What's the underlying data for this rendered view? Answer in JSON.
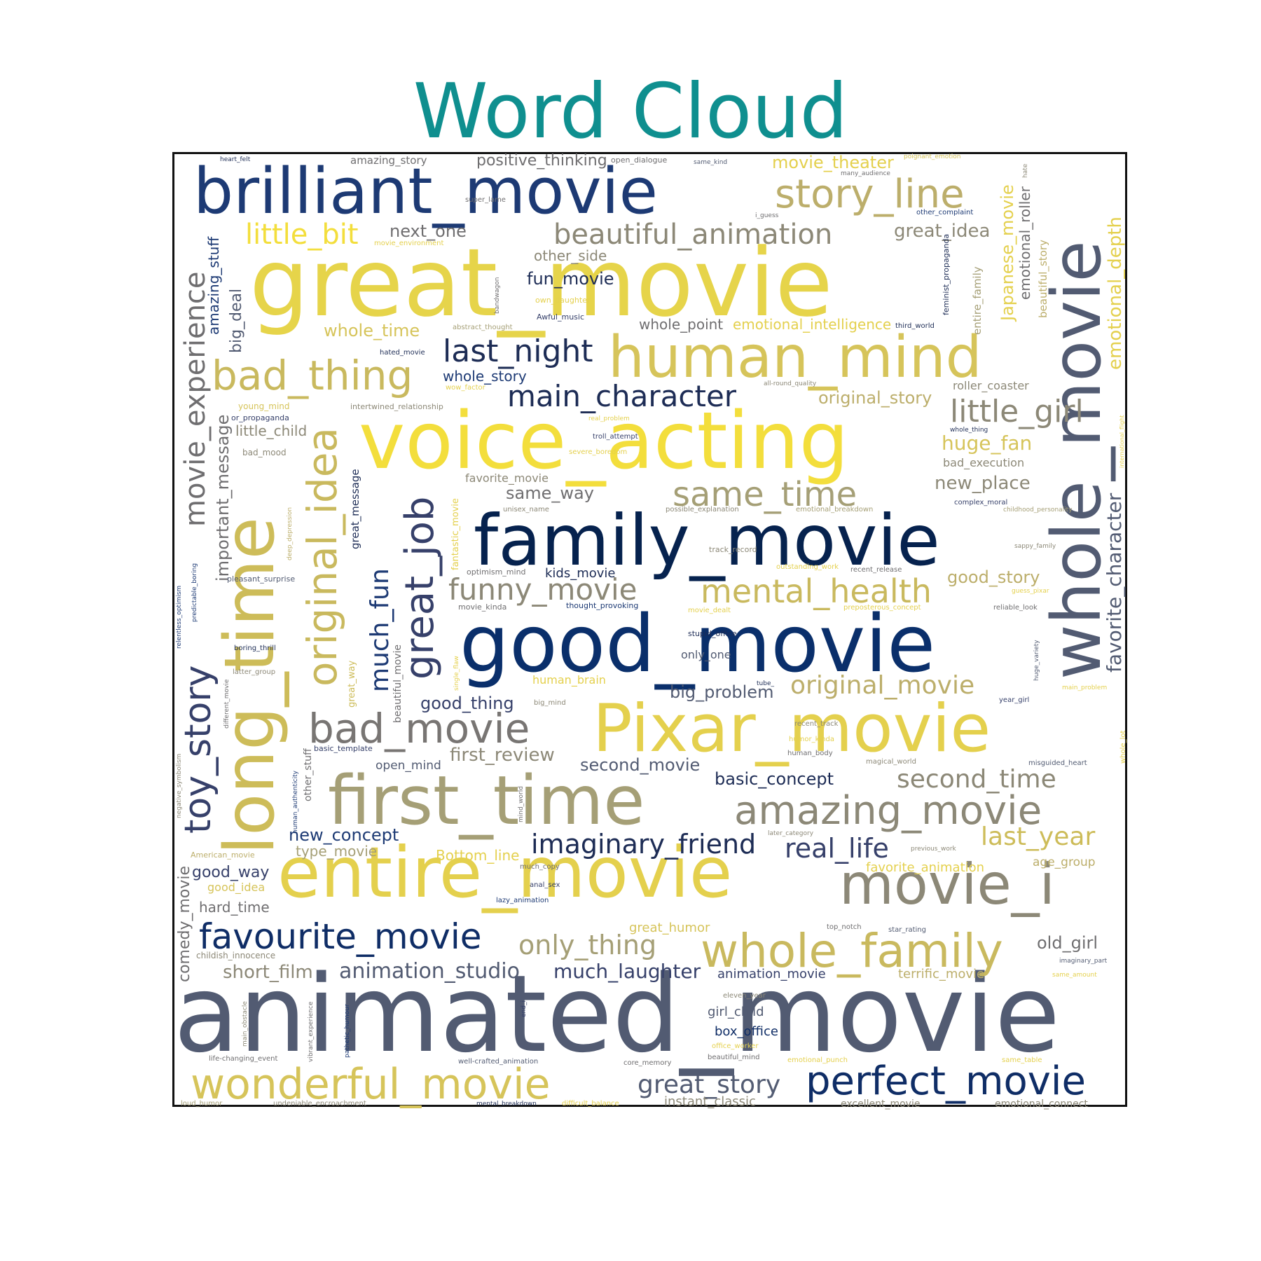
{
  "title": "Word Cloud",
  "chart_data": {
    "type": "wordcloud",
    "title": "Word Cloud",
    "colormap": "cividis",
    "words": [
      {
        "text": "animated_movie",
        "weight": 100,
        "color": "#525b72"
      },
      {
        "text": "great_movie",
        "weight": 96,
        "color": "#e6d44a"
      },
      {
        "text": "voice_acting",
        "weight": 92,
        "color": "#f3de3c"
      },
      {
        "text": "good_movie",
        "weight": 90,
        "color": "#0a2f6b"
      },
      {
        "text": "family_movie",
        "weight": 84,
        "color": "#06224e"
      },
      {
        "text": "long_time",
        "weight": 82,
        "color": "#cdbc59"
      },
      {
        "text": "entire_movie",
        "weight": 80,
        "color": "#e4d04d"
      },
      {
        "text": "whole_movie",
        "weight": 78,
        "color": "#525b72"
      },
      {
        "text": "first_time",
        "weight": 76,
        "color": "#a59f76"
      },
      {
        "text": "Pixar_movie",
        "weight": 74,
        "color": "#e4d04d"
      },
      {
        "text": "brilliant_movie",
        "weight": 72,
        "color": "#1d3a74"
      },
      {
        "text": "human_mind",
        "weight": 68,
        "color": "#d6c45a"
      },
      {
        "text": "movie_i",
        "weight": 64,
        "color": "#8c8877"
      },
      {
        "text": "wonderful_movie",
        "weight": 54,
        "color": "#d6c45a"
      },
      {
        "text": "whole_family",
        "weight": 54,
        "color": "#c9b95e"
      },
      {
        "text": "great_job",
        "weight": 52,
        "color": "#36406a"
      },
      {
        "text": "original_idea",
        "weight": 52,
        "color": "#c9b95e"
      },
      {
        "text": "perfect_movie",
        "weight": 50,
        "color": "#0f2d66"
      },
      {
        "text": "bad_movie",
        "weight": 48,
        "color": "#787573"
      },
      {
        "text": "amazing_movie",
        "weight": 48,
        "color": "#8c8877"
      },
      {
        "text": "story_line",
        "weight": 48,
        "color": "#bcae6b"
      },
      {
        "text": "bad_thing",
        "weight": 48,
        "color": "#c9b95e"
      },
      {
        "text": "toy_story",
        "weight": 44,
        "color": "#36406a"
      },
      {
        "text": "same_time",
        "weight": 40,
        "color": "#a59f76"
      },
      {
        "text": "favourite_movie",
        "weight": 40,
        "color": "#0f2d66"
      },
      {
        "text": "mental_health",
        "weight": 40,
        "color": "#c9b95e"
      },
      {
        "text": "main_character",
        "weight": 38,
        "color": "#1d2c55"
      },
      {
        "text": "last_night",
        "weight": 38,
        "color": "#1d2c55"
      },
      {
        "text": "movie_experience",
        "weight": 38,
        "color": "#6f6e70"
      },
      {
        "text": "funny_movie",
        "weight": 38,
        "color": "#8c8877"
      },
      {
        "text": "little_girl",
        "weight": 38,
        "color": "#8c8877"
      },
      {
        "text": "beautiful_animation",
        "weight": 36,
        "color": "#8c8877"
      },
      {
        "text": "only_thing",
        "weight": 34,
        "color": "#a59f76"
      },
      {
        "text": "great_story",
        "weight": 34,
        "color": "#525b72"
      },
      {
        "text": "imaginary_friend",
        "weight": 34,
        "color": "#1d2c55"
      },
      {
        "text": "real_life",
        "weight": 34,
        "color": "#36406a"
      },
      {
        "text": "second_time",
        "weight": 34,
        "color": "#8c8877"
      },
      {
        "text": "original_movie",
        "weight": 32,
        "color": "#bcae6b"
      },
      {
        "text": "last_year",
        "weight": 32,
        "color": "#cdbc59"
      },
      {
        "text": "much_fun",
        "weight": 32,
        "color": "#1d3a74"
      },
      {
        "text": "little_bit",
        "weight": 32,
        "color": "#f3de3c"
      },
      {
        "text": "emotional_depth",
        "weight": 30,
        "color": "#e4d04d"
      },
      {
        "text": "favorite_character",
        "weight": 28,
        "color": "#525b72"
      },
      {
        "text": "animation_studio",
        "weight": 28,
        "color": "#525b72"
      },
      {
        "text": "much_laughter",
        "weight": 28,
        "color": "#36406a"
      },
      {
        "text": "short_film",
        "weight": 26,
        "color": "#8c8877"
      },
      {
        "text": "huge_fan",
        "weight": 26,
        "color": "#d6c45a"
      },
      {
        "text": "great_idea",
        "weight": 26,
        "color": "#8c8877"
      },
      {
        "text": "Japanese_movie",
        "weight": 26,
        "color": "#e4d04d"
      },
      {
        "text": "first_review",
        "weight": 26,
        "color": "#8c8877"
      },
      {
        "text": "new_place",
        "weight": 26,
        "color": "#8c8877"
      },
      {
        "text": "basic_concept",
        "weight": 26,
        "color": "#1d2c55"
      },
      {
        "text": "new_concept",
        "weight": 26,
        "color": "#1d3a74"
      },
      {
        "text": "good_story",
        "weight": 26,
        "color": "#bcae6b"
      },
      {
        "text": "important_message",
        "weight": 26,
        "color": "#6f6e70"
      },
      {
        "text": "whole_time",
        "weight": 24,
        "color": "#d6c45a"
      },
      {
        "text": "second_movie",
        "weight": 24,
        "color": "#525b72"
      },
      {
        "text": "same_way",
        "weight": 24,
        "color": "#6f6e70"
      },
      {
        "text": "good_thing",
        "weight": 24,
        "color": "#36406a"
      },
      {
        "text": "big_problem",
        "weight": 24,
        "color": "#525b72"
      },
      {
        "text": "next_one",
        "weight": 24,
        "color": "#6f6e70"
      },
      {
        "text": "fun_movie",
        "weight": 24,
        "color": "#1d2c55"
      },
      {
        "text": "old_girl",
        "weight": 24,
        "color": "#6f6e70"
      },
      {
        "text": "whole_story",
        "weight": 22,
        "color": "#1d3a74"
      },
      {
        "text": "emotional_roller",
        "weight": 22,
        "color": "#6f6e70"
      },
      {
        "text": "amazing_stuff",
        "weight": 22,
        "color": "#1d3a74"
      },
      {
        "text": "big_deal",
        "weight": 22,
        "color": "#525b72"
      },
      {
        "text": "good_way",
        "weight": 22,
        "color": "#36406a"
      },
      {
        "text": "hard_time",
        "weight": 20,
        "color": "#6f6e70"
      },
      {
        "text": "Bottom_line",
        "weight": 20,
        "color": "#e4d04d"
      },
      {
        "text": "type_movie",
        "weight": 20,
        "color": "#a59f76"
      },
      {
        "text": "little_child",
        "weight": 20,
        "color": "#8c8877"
      },
      {
        "text": "whole_point",
        "weight": 20,
        "color": "#6f6e70"
      },
      {
        "text": "emotional_intelligence",
        "weight": 20,
        "color": "#e4d04d"
      },
      {
        "text": "movie_theater",
        "weight": 22,
        "color": "#e4d04d"
      },
      {
        "text": "positive_thinking",
        "weight": 22,
        "color": "#6f6e70"
      },
      {
        "text": "original_story",
        "weight": 24,
        "color": "#bcae6b"
      },
      {
        "text": "other_side",
        "weight": 20,
        "color": "#8c8877"
      },
      {
        "text": "great_humor",
        "weight": 18,
        "color": "#d6c45a"
      },
      {
        "text": "kids_movie",
        "weight": 18,
        "color": "#1d2c55"
      },
      {
        "text": "instant_classic",
        "weight": 18,
        "color": "#8c8877"
      },
      {
        "text": "comedy_movie",
        "weight": 22,
        "color": "#6f6e70"
      },
      {
        "text": "animation_movie",
        "weight": 18,
        "color": "#36406a"
      },
      {
        "text": "terrific_movie",
        "weight": 18,
        "color": "#bcae6b"
      },
      {
        "text": "favorite_animation",
        "weight": 18,
        "color": "#e4d04d"
      },
      {
        "text": "girl_child",
        "weight": 18,
        "color": "#525b72"
      },
      {
        "text": "box_office",
        "weight": 18,
        "color": "#0f2d66"
      },
      {
        "text": "open_mind",
        "weight": 17,
        "color": "#525b72"
      },
      {
        "text": "age_group",
        "weight": 17,
        "color": "#bcae6b"
      },
      {
        "text": "favorite_movie",
        "weight": 16,
        "color": "#8c8877"
      },
      {
        "text": "human_brain",
        "weight": 16,
        "color": "#e4d04d"
      },
      {
        "text": "bad_execution",
        "weight": 16,
        "color": "#8c8877"
      },
      {
        "text": "roller_coaster",
        "weight": 16,
        "color": "#8c8877"
      },
      {
        "text": "only_one",
        "weight": 16,
        "color": "#525b72"
      },
      {
        "text": "great_message",
        "weight": 15,
        "color": "#1d2c55"
      },
      {
        "text": "beautiful_story",
        "weight": 15,
        "color": "#bcae6b"
      },
      {
        "text": "entire_family",
        "weight": 15,
        "color": "#a59f76"
      },
      {
        "text": "beautiful_movie",
        "weight": 14,
        "color": "#6f6e70"
      },
      {
        "text": "amazing_story",
        "weight": 15,
        "color": "#6f6e70"
      },
      {
        "text": "other_stuff",
        "weight": 14,
        "color": "#6f6e70"
      },
      {
        "text": "excellent_movie",
        "weight": 14,
        "color": "#8c8877"
      },
      {
        "text": "emotional_connect",
        "weight": 14,
        "color": "#8c8877"
      },
      {
        "text": "great_way",
        "weight": 13,
        "color": "#cdbc59"
      },
      {
        "text": "fantastic_movie",
        "weight": 13,
        "color": "#e4d04d"
      },
      {
        "text": "childish_innocence",
        "weight": 12,
        "color": "#8c8877"
      },
      {
        "text": "feminist_propaganda",
        "weight": 11,
        "color": "#1d2c55"
      },
      {
        "text": "bad_mood",
        "weight": 12,
        "color": "#8c8877"
      },
      {
        "text": "young_mind",
        "weight": 12,
        "color": "#d6c45a"
      },
      {
        "text": "American_movie",
        "weight": 11,
        "color": "#bcae6b"
      },
      {
        "text": "good_idea",
        "weight": 16,
        "color": "#d6c45a"
      },
      {
        "text": "movie_kinda",
        "weight": 11,
        "color": "#6f6e70"
      },
      {
        "text": "stupid_office",
        "weight": 11,
        "color": "#1d2c55"
      },
      {
        "text": "thought_provoking",
        "weight": 11,
        "color": "#1d3a74"
      },
      {
        "text": "optimism_mind",
        "weight": 11,
        "color": "#6f6e70"
      },
      {
        "text": "track_record",
        "weight": 11,
        "color": "#8c8877"
      },
      {
        "text": "recent_release",
        "weight": 10,
        "color": "#6f6e70"
      },
      {
        "text": "reliable_look",
        "weight": 10,
        "color": "#6f6e70"
      },
      {
        "text": "pleasant_surprise",
        "weight": 11,
        "color": "#525b72"
      },
      {
        "text": "boring_thrill",
        "weight": 10,
        "color": "#1d2c55"
      },
      {
        "text": "latter_group",
        "weight": 10,
        "color": "#8c8877"
      },
      {
        "text": "basic_template",
        "weight": 11,
        "color": "#36406a"
      },
      {
        "text": "intertwined_relationship",
        "weight": 11,
        "color": "#8c8877"
      },
      {
        "text": "or_propaganda",
        "weight": 11,
        "color": "#36406a"
      },
      {
        "text": "hated_movie",
        "weight": 10,
        "color": "#1d2c55"
      },
      {
        "text": "abstract_thought",
        "weight": 10,
        "color": "#a59f76"
      },
      {
        "text": "Awful_music",
        "weight": 11,
        "color": "#36406a"
      },
      {
        "text": "own_daughter",
        "weight": 11,
        "color": "#e4d04d"
      },
      {
        "text": "movie_environment",
        "weight": 10,
        "color": "#e4d04d"
      },
      {
        "text": "super_lame",
        "weight": 10,
        "color": "#6f6e70"
      },
      {
        "text": "bandwagon",
        "weight": 9,
        "color": "#6f6e70"
      },
      {
        "text": "troll_attempt",
        "weight": 10,
        "color": "#36406a"
      },
      {
        "text": "severe_boredom",
        "weight": 10,
        "color": "#e4d04d"
      },
      {
        "text": "real_problem",
        "weight": 9,
        "color": "#e4d04d"
      },
      {
        "text": "wow_factor",
        "weight": 10,
        "color": "#e4d04d"
      },
      {
        "text": "unisex_name",
        "weight": 10,
        "color": "#8c8877"
      },
      {
        "text": "possible_explanation",
        "weight": 10,
        "color": "#8c8877"
      },
      {
        "text": "emotional_breakdown",
        "weight": 10,
        "color": "#a59f76"
      },
      {
        "text": "complex_moral",
        "weight": 10,
        "color": "#36406a"
      },
      {
        "text": "childhood_personality",
        "weight": 9,
        "color": "#a59f76"
      },
      {
        "text": "sappy_family",
        "weight": 9,
        "color": "#8c8877"
      },
      {
        "text": "outstanding_work",
        "weight": 10,
        "color": "#e4d04d"
      },
      {
        "text": "movie_dealt",
        "weight": 10,
        "color": "#e4d04d"
      },
      {
        "text": "preposterous_concept",
        "weight": 10,
        "color": "#e4d04d"
      },
      {
        "text": "guess_pixar",
        "weight": 9,
        "color": "#e4d04d"
      },
      {
        "text": "all-round_quality",
        "weight": 9,
        "color": "#8c8877"
      },
      {
        "text": "whole_thing",
        "weight": 9,
        "color": "#1d2c55"
      },
      {
        "text": "international_flight",
        "weight": 8,
        "color": "#e4d04d"
      },
      {
        "text": "third_world",
        "weight": 10,
        "color": "#1d2c55"
      },
      {
        "text": "i_guess",
        "weight": 9,
        "color": "#6f6e70"
      },
      {
        "text": "other_complaint",
        "weight": 10,
        "color": "#1d3a74"
      },
      {
        "text": "many_audience",
        "weight": 9,
        "color": "#6f6e70"
      },
      {
        "text": "poignant_emotion",
        "weight": 9,
        "color": "#d6c45a"
      },
      {
        "text": "same_kind",
        "weight": 9,
        "color": "#525b72"
      },
      {
        "text": "open_dialogue",
        "weight": 11,
        "color": "#6f6e70"
      },
      {
        "text": "heart_felt",
        "weight": 9,
        "color": "#1d2c55"
      },
      {
        "text": "hate",
        "weight": 9,
        "color": "#8c8877"
      },
      {
        "text": "single_flaw",
        "weight": 9,
        "color": "#e4d04d"
      },
      {
        "text": "big_mind",
        "weight": 10,
        "color": "#8c8877"
      },
      {
        "text": "tube_",
        "weight": 9,
        "color": "#1d2c55"
      },
      {
        "text": "year_girl",
        "weight": 10,
        "color": "#36406a"
      },
      {
        "text": "main_problem",
        "weight": 9,
        "color": "#e4d04d"
      },
      {
        "text": "huge_variety",
        "weight": 9,
        "color": "#525b72"
      },
      {
        "text": "whole_lot",
        "weight": 10,
        "color": "#e4d04d"
      },
      {
        "text": "recent_track",
        "weight": 10,
        "color": "#8c8877"
      },
      {
        "text": "humor_kinda",
        "weight": 10,
        "color": "#e4d04d"
      },
      {
        "text": "human_body",
        "weight": 10,
        "color": "#6f6e70"
      },
      {
        "text": "magical_world",
        "weight": 10,
        "color": "#8c8877"
      },
      {
        "text": "misguided_heart",
        "weight": 10,
        "color": "#525b72"
      },
      {
        "text": "later_category",
        "weight": 9,
        "color": "#8c8877"
      },
      {
        "text": "previous_work",
        "weight": 9,
        "color": "#8c8877"
      },
      {
        "text": "much_copy",
        "weight": 10,
        "color": "#6f6e70"
      },
      {
        "text": "anal_sex",
        "weight": 10,
        "color": "#36406a"
      },
      {
        "text": "lazy_animation",
        "weight": 10,
        "color": "#1d3a74"
      },
      {
        "text": "top_notch",
        "weight": 10,
        "color": "#6f6e70"
      },
      {
        "text": "star_rating",
        "weight": 10,
        "color": "#525b72"
      },
      {
        "text": "imaginary_part",
        "weight": 9,
        "color": "#525b72"
      },
      {
        "text": "same_amount",
        "weight": 9,
        "color": "#e4d04d"
      },
      {
        "text": "eleven_year",
        "weight": 10,
        "color": "#8c8877"
      },
      {
        "text": "office_worker",
        "weight": 10,
        "color": "#e4d04d"
      },
      {
        "text": "beautiful_mind",
        "weight": 10,
        "color": "#6f6e70"
      },
      {
        "text": "emotional_punch",
        "weight": 10,
        "color": "#e4d04d"
      },
      {
        "text": "same_table",
        "weight": 10,
        "color": "#e4d04d"
      },
      {
        "text": "core_memory",
        "weight": 10,
        "color": "#6f6e70"
      },
      {
        "text": "well-crafted_animation",
        "weight": 10,
        "color": "#525b72"
      },
      {
        "text": "life-changing_event",
        "weight": 10,
        "color": "#6f6e70"
      },
      {
        "text": "loud_humor",
        "weight": 10,
        "color": "#a59f76"
      },
      {
        "text": "undeniable_encroachment",
        "weight": 10,
        "color": "#8c8877"
      },
      {
        "text": "mental_breakdown",
        "weight": 9,
        "color": "#1d2c55"
      },
      {
        "text": "difficult_balance",
        "weight": 10,
        "color": "#e4d04d"
      },
      {
        "text": "relentless_optimism",
        "weight": 9,
        "color": "#1d3a74"
      },
      {
        "text": "predictable_boring",
        "weight": 9,
        "color": "#1d3a74"
      },
      {
        "text": "deep_depression",
        "weight": 9,
        "color": "#bcae6b"
      },
      {
        "text": "different_movie",
        "weight": 9,
        "color": "#6f6e70"
      },
      {
        "text": "negative_symbolism",
        "weight": 9,
        "color": "#8c8877"
      },
      {
        "text": "human_authenticity",
        "weight": 9,
        "color": "#1d3a74"
      },
      {
        "text": "mind_world",
        "weight": 9,
        "color": "#6f6e70"
      },
      {
        "text": "main_obstacle",
        "weight": 9,
        "color": "#8c8877"
      },
      {
        "text": "vibrant_experience",
        "weight": 9,
        "color": "#6f6e70"
      },
      {
        "text": "pathetic_humour",
        "weight": 9,
        "color": "#1d3a74"
      },
      {
        "text": "end_i",
        "weight": 9,
        "color": "#36406a"
      }
    ]
  }
}
